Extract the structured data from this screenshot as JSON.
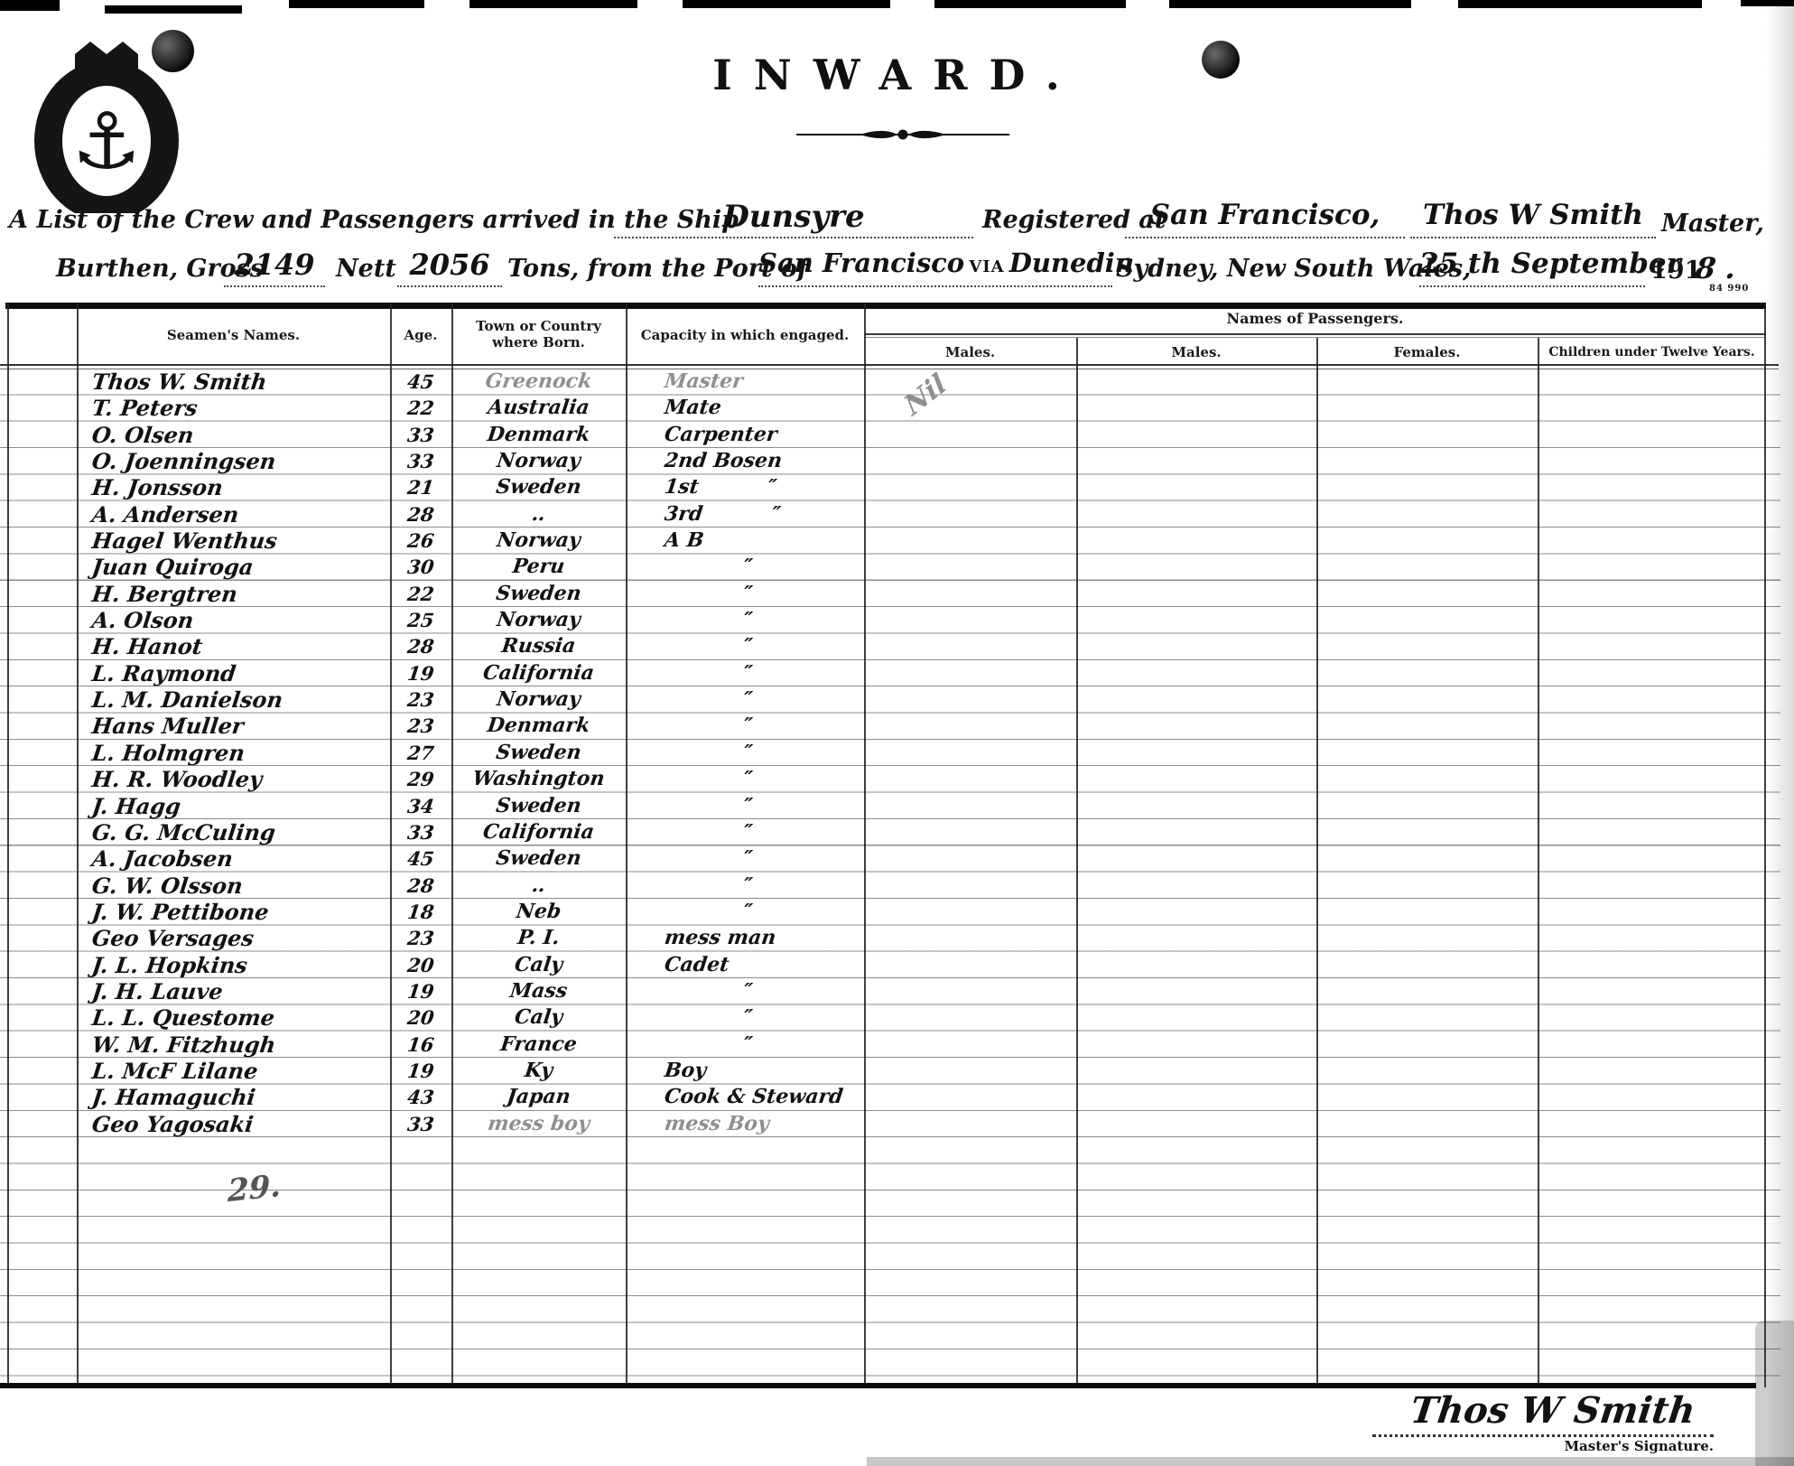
{
  "page": {
    "paper": "#ffffff",
    "ink": "#121212",
    "pencil": "#8f8f8f"
  },
  "header": {
    "title": "INWARD.",
    "seal_icon": "crown-anchor-seal",
    "divider_icon": "spindle-rule-ornament",
    "form_number": "84 990"
  },
  "form": {
    "line1": {
      "printed_ship": "A List of the Crew and Passengers arrived in the Ship",
      "ship_name": "Dunsyre",
      "printed_registered": "Registered at",
      "registered_at": "San Francisco,",
      "master_name": "Thos W Smith",
      "printed_master": "Master,"
    },
    "line2": {
      "printed_burthen": "Burthen, Gross",
      "gross_tons": "2149",
      "printed_nett": "Nett",
      "nett_tons": "2056",
      "printed_port": "Tons, from the Port of",
      "port": "San Francisco",
      "via": "VIA",
      "via_port": "Dunedin",
      "printed_city": "Sydney, New South Wales,",
      "date": "25 th September",
      "printed_year": "191",
      "year_digit": "8 ."
    }
  },
  "table": {
    "headers": {
      "seamens_names": "Seamen's Names.",
      "age": "Age.",
      "town": "Town or Country where Born.",
      "capacity": "Capacity in which engaged.",
      "passengers": "Names of Passengers.",
      "passenger_columns": [
        "Males.",
        "Males.",
        "Females.",
        "Children under Twelve Years."
      ]
    },
    "rows": [
      {
        "name": "Thos W. Smith",
        "age": "45",
        "town": "Greenock",
        "capacity": "Master",
        "pencil": [
          "town",
          "capacity"
        ]
      },
      {
        "name": "T. Peters",
        "age": "22",
        "town": "Australia",
        "capacity": "Mate"
      },
      {
        "name": "O. Olsen",
        "age": "33",
        "town": "Denmark",
        "capacity": "Carpenter"
      },
      {
        "name": "O. Joenningsen",
        "age": "33",
        "town": "Norway",
        "capacity": "2nd Bosen"
      },
      {
        "name": "H. Jonsson",
        "age": "21",
        "town": "Sweden",
        "capacity": "1st          ″"
      },
      {
        "name": "A. Andersen",
        "age": "28",
        "town": "‥",
        "capacity": "3rd          ″"
      },
      {
        "name": "Hagel Wenthus",
        "age": "26",
        "town": "Norway",
        "capacity": "A B"
      },
      {
        "name": "Juan Quiroga",
        "age": "30",
        "town": "Peru",
        "capacity": "″"
      },
      {
        "name": "H. Bergtren",
        "age": "22",
        "town": "Sweden",
        "capacity": "″"
      },
      {
        "name": "A. Olson",
        "age": "25",
        "town": "Norway",
        "capacity": "″"
      },
      {
        "name": "H. Hanot",
        "age": "28",
        "town": "Russia",
        "capacity": "″"
      },
      {
        "name": "L. Raymond",
        "age": "19",
        "town": "California",
        "capacity": "″"
      },
      {
        "name": "L. M. Danielson",
        "age": "23",
        "town": "Norway",
        "capacity": "″"
      },
      {
        "name": "Hans Muller",
        "age": "23",
        "town": "Denmark",
        "capacity": "″"
      },
      {
        "name": "L. Holmgren",
        "age": "27",
        "town": "Sweden",
        "capacity": "″"
      },
      {
        "name": "H. R. Woodley",
        "age": "29",
        "town": "Washington",
        "capacity": "″"
      },
      {
        "name": "J. Hagg",
        "age": "34",
        "town": "Sweden",
        "capacity": "″"
      },
      {
        "name": "G. G. McCuling",
        "age": "33",
        "town": "California",
        "capacity": "″"
      },
      {
        "name": "A. Jacobsen",
        "age": "45",
        "town": "Sweden",
        "capacity": "″"
      },
      {
        "name": "G. W. Olsson",
        "age": "28",
        "town": "‥",
        "capacity": "″"
      },
      {
        "name": "J. W. Pettibone",
        "age": "18",
        "town": "Neb",
        "capacity": "″"
      },
      {
        "name": "Geo Versages",
        "age": "23",
        "town": "P. I.",
        "capacity": "mess man"
      },
      {
        "name": "J. L. Hopkins",
        "age": "20",
        "town": "Caly",
        "capacity": "Cadet"
      },
      {
        "name": "J. H. Lauve",
        "age": "19",
        "town": "Mass",
        "capacity": "″"
      },
      {
        "name": "L. L. Questome",
        "age": "20",
        "town": "Caly",
        "capacity": "″"
      },
      {
        "name": "W. M. Fitzhugh",
        "age": "16",
        "town": "France",
        "capacity": "″"
      },
      {
        "name": "L. McF Lilane",
        "age": "19",
        "town": "Ky",
        "capacity": "Boy"
      },
      {
        "name": "J. Hamaguchi",
        "age": "43",
        "town": "Japan",
        "capacity": "Cook & Steward"
      },
      {
        "name": "Geo Yagosaki",
        "age": "33",
        "town": "mess boy",
        "capacity": "mess Boy",
        "pencil": [
          "town",
          "capacity"
        ]
      }
    ],
    "annotations": {
      "passengers_nil": "Nil",
      "crew_total": "29."
    }
  },
  "footer": {
    "signature": "Thos W Smith",
    "signature_label": "Master's Signature."
  }
}
